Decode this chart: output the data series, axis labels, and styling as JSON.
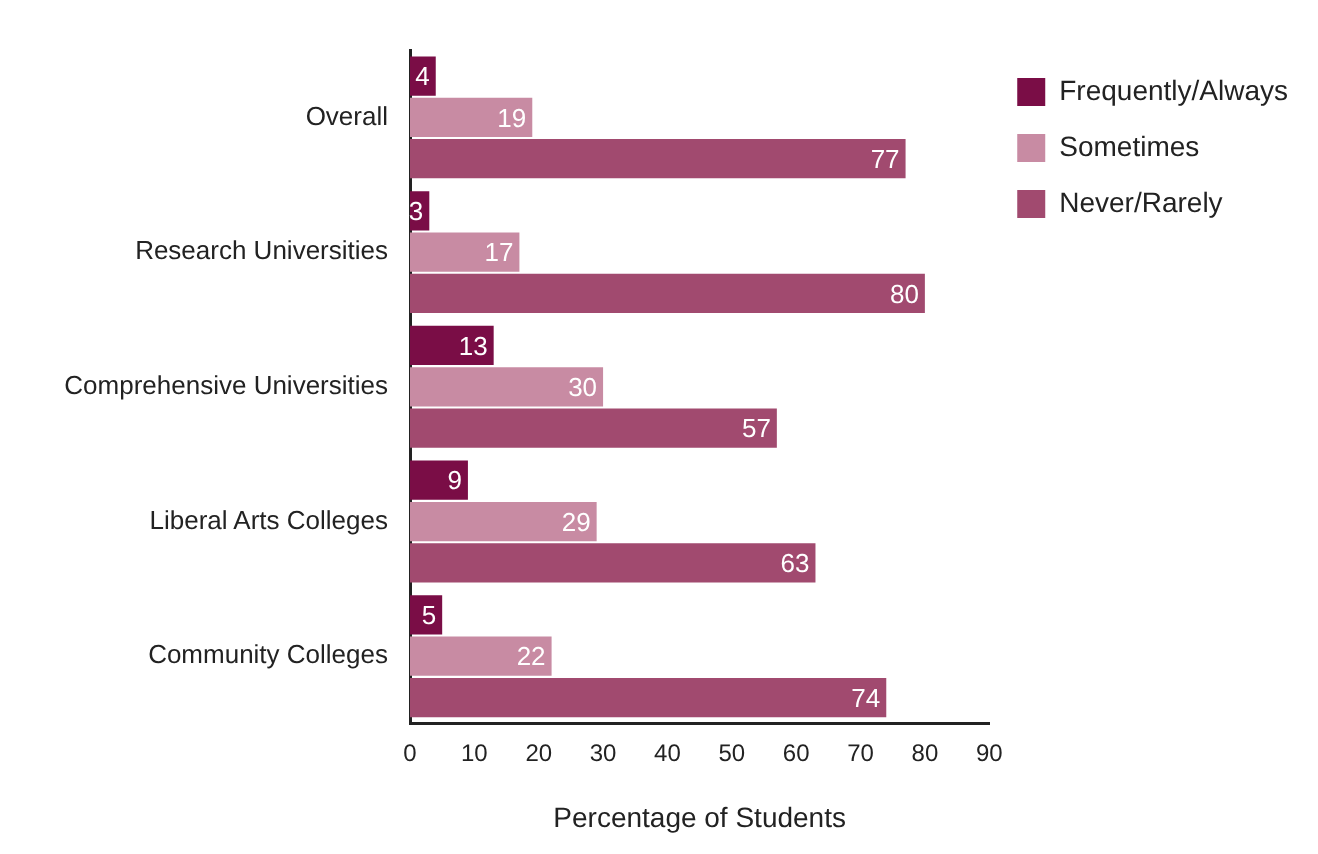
{
  "chart_data": {
    "type": "bar",
    "orientation": "horizontal",
    "xlabel": "Percentage of Students",
    "categories": [
      "Overall",
      "Research Universities",
      "Comprehensive Universities",
      "Liberal Arts Colleges",
      "Community Colleges"
    ],
    "series": [
      {
        "name": "Frequently/Always",
        "color": "#7a0d46",
        "values": [
          4,
          3,
          13,
          9,
          5
        ]
      },
      {
        "name": "Sometimes",
        "color": "#c88ba3",
        "values": [
          19,
          17,
          30,
          29,
          22
        ]
      },
      {
        "name": "Never/Rarely",
        "color": "#a14a6f",
        "values": [
          77,
          80,
          57,
          63,
          74
        ]
      }
    ],
    "xlim": [
      0,
      90
    ],
    "xticks": [
      0,
      10,
      20,
      30,
      40,
      50,
      60,
      70,
      80,
      90
    ],
    "grid": false,
    "legend": "top right",
    "data_labels": true
  }
}
